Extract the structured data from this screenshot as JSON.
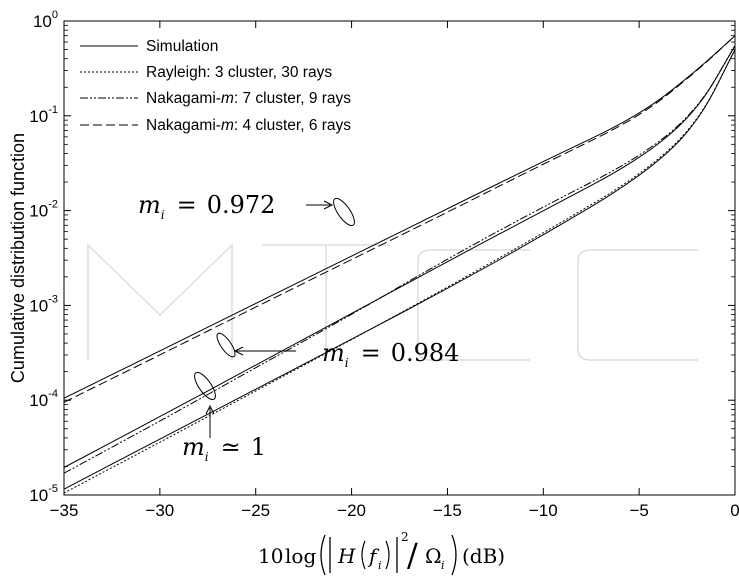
{
  "chart_data": {
    "type": "line",
    "title": "",
    "ylabel": "Cumulative distribution function",
    "xlabel": {
      "prefix": "10",
      "log": "log",
      "H": "H",
      "f": "f",
      "i": "i",
      "exp": "2",
      "slash": "/",
      "omega": "Ω",
      "unit": "(dB)"
    },
    "xlim": [
      -35,
      0
    ],
    "ylim_exponents": [
      -5,
      0
    ],
    "yscale": "log",
    "grid": false,
    "legend_position": "top-left",
    "x_ticks": [
      "−35",
      "−30",
      "−25",
      "−20",
      "−15",
      "−10",
      "−5",
      "0"
    ],
    "y_ticks": [
      {
        "base": "10",
        "exp": "-5"
      },
      {
        "base": "10",
        "exp": "-4"
      },
      {
        "base": "10",
        "exp": "-3"
      },
      {
        "base": "10",
        "exp": "-2"
      },
      {
        "base": "10",
        "exp": "-1"
      },
      {
        "base": "10",
        "exp": "0"
      }
    ],
    "legend": [
      {
        "label": "Simulation",
        "style": "solid",
        "italic_part": ""
      },
      {
        "label": "Rayleigh: 3 cluster, 30 rays",
        "style": "dotted",
        "italic_part": ""
      },
      {
        "label_before": "Nakagami-",
        "label_italic": "m",
        "label_after": ": 7 cluster, 9 rays",
        "style": "dashdot"
      },
      {
        "label_before": "Nakagami-",
        "label_italic": "m",
        "label_after": ": 4 cluster, 6 rays",
        "style": "dashed"
      }
    ],
    "series": [
      {
        "group": "m_i = 0.972",
        "curves": [
          {
            "style": "solid",
            "x": [
              -35,
              -30,
              -25,
              -20,
              -15,
              -10,
              -5,
              -2,
              0
            ],
            "y": [
              0.000105,
              0.00033,
              0.00105,
              0.0033,
              0.0105,
              0.033,
              0.1,
              0.3,
              0.7
            ]
          },
          {
            "style": "dashed",
            "x": [
              -35,
              -30,
              -25,
              -20,
              -15,
              -10,
              -5,
              -2,
              0
            ],
            "y": [
              9.5e-05,
              0.0003,
              0.00096,
              0.00305,
              0.0096,
              0.031,
              0.096,
              0.295,
              0.7
            ]
          }
        ]
      },
      {
        "group": "m_i = 0.984",
        "curves": [
          {
            "style": "solid",
            "x": [
              -35,
              -30,
              -25,
              -20,
              -15,
              -10,
              -5,
              -2,
              0
            ],
            "y": [
              1.95e-05,
              6.7e-05,
              0.000235,
              0.00082,
              0.0029,
              0.01,
              0.034,
              0.11,
              0.55
            ]
          },
          {
            "style": "dashdot",
            "x": [
              -35,
              -30,
              -25,
              -20,
              -15,
              -10,
              -5,
              -2,
              0
            ],
            "y": [
              1.7e-05,
              6e-05,
              0.00022,
              0.0008,
              0.0031,
              0.011,
              0.036,
              0.112,
              0.55
            ]
          }
        ]
      },
      {
        "group": "m_i ≃ 1",
        "curves": [
          {
            "style": "solid",
            "x": [
              -35,
              -30,
              -25,
              -20,
              -15,
              -10,
              -5,
              -2,
              0
            ],
            "y": [
              1.15e-05,
              3.9e-05,
              0.00013,
              0.00044,
              0.0015,
              0.0055,
              0.022,
              0.078,
              0.5
            ]
          },
          {
            "style": "dotted",
            "x": [
              -35,
              -30,
              -25,
              -20,
              -15,
              -10,
              -5,
              -2,
              0
            ],
            "y": [
              1.05e-05,
              3.6e-05,
              0.000125,
              0.000435,
              0.00155,
              0.0058,
              0.023,
              0.08,
              0.5
            ]
          }
        ]
      }
    ],
    "annotations": [
      {
        "m": "m",
        "i": "i",
        "rel": "=",
        "value": "0.972"
      },
      {
        "m": "m",
        "i": "i",
        "rel": "=",
        "value": "0.984"
      },
      {
        "m": "m",
        "i": "i",
        "rel": "≃",
        "value": "1"
      }
    ],
    "watermark": "INTECH"
  }
}
